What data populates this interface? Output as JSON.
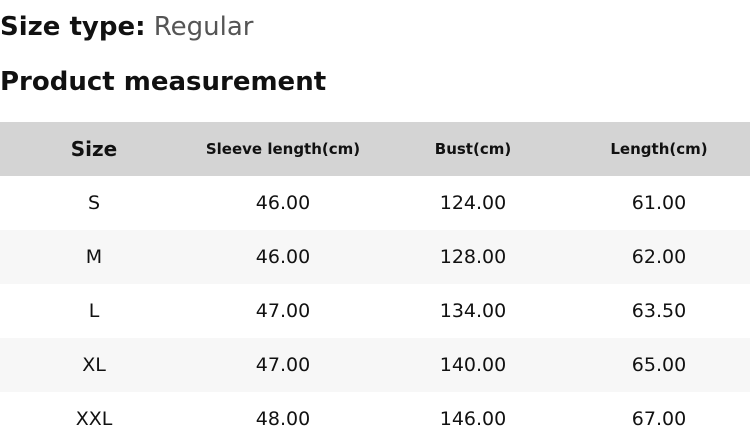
{
  "size_type": {
    "label": "Size type:",
    "value": "Regular"
  },
  "title": "Product measurement",
  "headers": [
    "Size",
    "Sleeve length(cm)",
    "Bust(cm)",
    "Length(cm)"
  ],
  "rows": [
    [
      "S",
      "46.00",
      "124.00",
      "61.00"
    ],
    [
      "M",
      "46.00",
      "128.00",
      "62.00"
    ],
    [
      "L",
      "47.00",
      "134.00",
      "63.50"
    ],
    [
      "XL",
      "47.00",
      "140.00",
      "65.00"
    ],
    [
      "XXL",
      "48.00",
      "146.00",
      "67.00"
    ]
  ]
}
